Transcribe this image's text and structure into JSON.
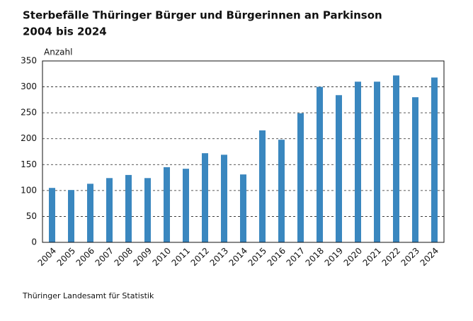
{
  "chart_data": {
    "type": "bar",
    "title": "Sterbefälle Thüringer Bürger und Bürgerinnen an Parkinson",
    "subtitle": "2004 bis 2024",
    "y_label": "Anzahl",
    "source": "Thüringer Landesamt für Statistik",
    "categories": [
      "2004",
      "2005",
      "2006",
      "2007",
      "2008",
      "2009",
      "2010",
      "2011",
      "2012",
      "2013",
      "2014",
      "2015",
      "2016",
      "2017",
      "2018",
      "2019",
      "2020",
      "2021",
      "2022",
      "2023",
      "2024"
    ],
    "values": [
      105,
      101,
      113,
      124,
      130,
      124,
      145,
      142,
      172,
      169,
      131,
      216,
      198,
      249,
      300,
      284,
      310,
      310,
      322,
      280,
      318
    ],
    "color": "#3a87bf",
    "ylim": [
      0,
      350
    ],
    "yticks": [
      0,
      50,
      100,
      150,
      200,
      250,
      300,
      350
    ],
    "grid": true
  }
}
